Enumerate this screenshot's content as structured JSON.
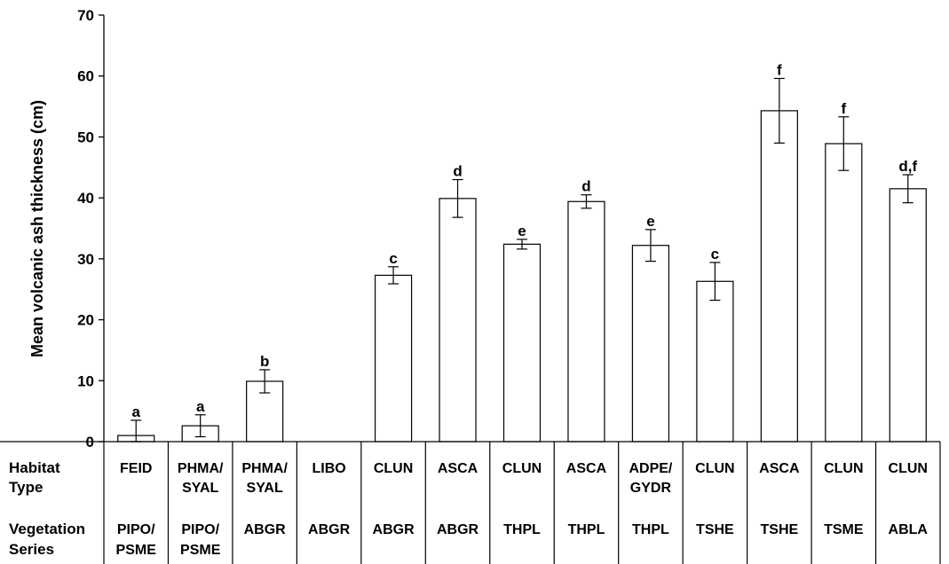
{
  "chart_data": {
    "type": "bar",
    "ylabel": "Mean volcanic ash thickness (cm)",
    "ylim": [
      0,
      70
    ],
    "yticks": [
      "0",
      "10",
      "20",
      "30",
      "40",
      "50",
      "60",
      "70"
    ],
    "grid": false,
    "colors": {
      "bar_fill": "#ffffff",
      "bar_stroke": "#000000"
    },
    "table_headers": {
      "habitat": [
        "Habitat",
        "Type"
      ],
      "vegetation": [
        "Vegetation",
        "Series"
      ]
    },
    "categories": [
      {
        "habitat": [
          "FEID"
        ],
        "vegetation": [
          "PIPO/",
          "PSME"
        ],
        "value": 1.0,
        "err": 2.5,
        "sig": "a"
      },
      {
        "habitat": [
          "PHMA/",
          "SYAL"
        ],
        "vegetation": [
          "PIPO/",
          "PSME"
        ],
        "value": 2.6,
        "err": 1.8,
        "sig": "a"
      },
      {
        "habitat": [
          "PHMA/",
          "SYAL"
        ],
        "vegetation": [
          "ABGR"
        ],
        "value": 9.9,
        "err": 1.9,
        "sig": "b"
      },
      {
        "habitat": [
          "LIBO"
        ],
        "vegetation": [
          "ABGR"
        ],
        "value": null,
        "err": null,
        "sig": ""
      },
      {
        "habitat": [
          "CLUN"
        ],
        "vegetation": [
          "ABGR"
        ],
        "value": 27.3,
        "err": 1.4,
        "sig": "c"
      },
      {
        "habitat": [
          "ASCA"
        ],
        "vegetation": [
          "ABGR"
        ],
        "value": 39.9,
        "err": 3.1,
        "sig": "d"
      },
      {
        "habitat": [
          "CLUN"
        ],
        "vegetation": [
          "THPL"
        ],
        "value": 32.4,
        "err": 0.8,
        "sig": "e"
      },
      {
        "habitat": [
          "ASCA"
        ],
        "vegetation": [
          "THPL"
        ],
        "value": 39.4,
        "err": 1.1,
        "sig": "d"
      },
      {
        "habitat": [
          "ADPE/",
          "GYDR"
        ],
        "vegetation": [
          "THPL"
        ],
        "value": 32.2,
        "err": 2.6,
        "sig": "e"
      },
      {
        "habitat": [
          "CLUN"
        ],
        "vegetation": [
          "TSHE"
        ],
        "value": 26.3,
        "err": 3.1,
        "sig": "c"
      },
      {
        "habitat": [
          "ASCA"
        ],
        "vegetation": [
          "TSHE"
        ],
        "value": 54.3,
        "err": 5.3,
        "sig": "f"
      },
      {
        "habitat": [
          "CLUN"
        ],
        "vegetation": [
          "TSME"
        ],
        "value": 48.9,
        "err": 4.4,
        "sig": "f"
      },
      {
        "habitat": [
          "CLUN"
        ],
        "vegetation": [
          "ABLA"
        ],
        "value": 41.5,
        "err": 2.3,
        "sig": "d,f"
      }
    ]
  }
}
